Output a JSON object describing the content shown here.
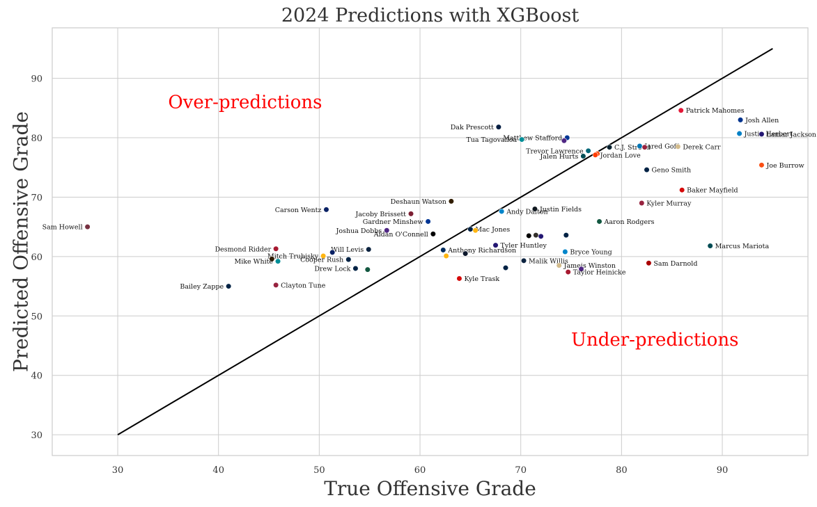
{
  "chart_data": {
    "type": "scatter",
    "title": "2024 Predictions with XGBoost",
    "xlabel": "True Offensive Grade",
    "ylabel": "Predicted Offensive Grade",
    "xlim": [
      23.5,
      98.5
    ],
    "ylim": [
      26.5,
      98.5
    ],
    "xticks": [
      30,
      40,
      50,
      60,
      70,
      80,
      90
    ],
    "yticks": [
      30,
      40,
      50,
      60,
      70,
      80,
      90
    ],
    "grid": true,
    "reference_line": {
      "x": [
        30,
        95
      ],
      "y": [
        30,
        95
      ],
      "color": "#000000"
    },
    "annotations": [
      {
        "text": "Over-predictions",
        "x": 35,
        "y": 85,
        "color": "#ff0000"
      },
      {
        "text": "Under-predictions",
        "x": 75,
        "y": 45,
        "color": "#ff0000"
      }
    ],
    "points": [
      {
        "name": "Patrick Mahomes",
        "x": 85.9,
        "y": 84.6,
        "color": "#e31837",
        "side": "right"
      },
      {
        "name": "Josh Allen",
        "x": 91.8,
        "y": 83.0,
        "color": "#00338d",
        "side": "right"
      },
      {
        "name": "Justin Herbert",
        "x": 91.7,
        "y": 80.7,
        "color": "#0080c6",
        "side": "right"
      },
      {
        "name": "Lamar Jackson",
        "x": 93.9,
        "y": 80.6,
        "color": "#241773",
        "side": "right"
      },
      {
        "name": "Joe Burrow",
        "x": 93.9,
        "y": 75.4,
        "color": "#fb4f14",
        "side": "right"
      },
      {
        "name": "Dak Prescott",
        "x": 67.8,
        "y": 81.8,
        "color": "#041e42",
        "side": "left"
      },
      {
        "name": "Matthew Stafford",
        "x": 74.6,
        "y": 80.0,
        "color": "#003594",
        "side": "left"
      },
      {
        "name": "Tua Tagovailoa",
        "x": 70.1,
        "y": 79.7,
        "color": "#008e97",
        "side": "left"
      },
      {
        "name": "",
        "x": 74.3,
        "y": 79.5,
        "color": "#4f2683",
        "side": "right"
      },
      {
        "name": "C.J. Stroud",
        "x": 78.8,
        "y": 78.4,
        "color": "#03202f",
        "side": "right"
      },
      {
        "name": "Jared Goff",
        "x": 81.8,
        "y": 78.6,
        "color": "#0076b6",
        "side": "right"
      },
      {
        "name": "",
        "x": 82.3,
        "y": 78.4,
        "color": "#97233f",
        "side": "right"
      },
      {
        "name": "Derek Carr",
        "x": 85.6,
        "y": 78.5,
        "color": "#d3bc8d",
        "side": "right"
      },
      {
        "name": "Trevor Lawrence",
        "x": 76.7,
        "y": 77.8,
        "color": "#006778",
        "side": "left"
      },
      {
        "name": "Jalen Hurts",
        "x": 76.2,
        "y": 76.9,
        "color": "#004c54",
        "side": "left"
      },
      {
        "name": "",
        "x": 77.6,
        "y": 77.3,
        "color": "#fb4f14",
        "side": "right"
      },
      {
        "name": "Jordan Love",
        "x": 77.4,
        "y": 77.1,
        "color": "#ff3c00",
        "side": "right"
      },
      {
        "name": "Geno Smith",
        "x": 82.5,
        "y": 74.6,
        "color": "#002244",
        "side": "right"
      },
      {
        "name": "Baker Mayfield",
        "x": 86.0,
        "y": 71.2,
        "color": "#d50a0a",
        "side": "right"
      },
      {
        "name": "Kyler Murray",
        "x": 82.0,
        "y": 69.0,
        "color": "#97233f",
        "side": "right"
      },
      {
        "name": "Deshaun Watson",
        "x": 63.1,
        "y": 69.3,
        "color": "#311d00",
        "side": "left"
      },
      {
        "name": "Carson Wentz",
        "x": 50.7,
        "y": 67.9,
        "color": "#0b2265",
        "side": "left"
      },
      {
        "name": "Andy Dalton",
        "x": 68.1,
        "y": 67.6,
        "color": "#0085ca",
        "side": "right"
      },
      {
        "name": "Justin Fields",
        "x": 71.4,
        "y": 68.0,
        "color": "#101820",
        "side": "right"
      },
      {
        "name": "Jacoby Brissett",
        "x": 59.1,
        "y": 67.2,
        "color": "#7c1f33",
        "side": "left"
      },
      {
        "name": "Gardner Minshew",
        "x": 60.8,
        "y": 65.9,
        "color": "#003594",
        "side": "left"
      },
      {
        "name": "Aaron Rodgers",
        "x": 77.8,
        "y": 65.9,
        "color": "#125740",
        "side": "right"
      },
      {
        "name": "Sam Howell",
        "x": 27.0,
        "y": 65.0,
        "color": "#773141",
        "side": "left"
      },
      {
        "name": "Joshua Dobbs",
        "x": 56.7,
        "y": 64.4,
        "color": "#4f2683",
        "side": "left"
      },
      {
        "name": "Mac Jones",
        "x": 65.0,
        "y": 64.6,
        "color": "#002244",
        "side": "right"
      },
      {
        "name": "",
        "x": 65.5,
        "y": 64.4,
        "color": "#ffb612",
        "side": "right"
      },
      {
        "name": "Aidan O'Connell",
        "x": 61.3,
        "y": 63.8,
        "color": "#000000",
        "side": "left"
      },
      {
        "name": "",
        "x": 70.8,
        "y": 63.5,
        "color": "#000000",
        "side": "right"
      },
      {
        "name": "",
        "x": 71.5,
        "y": 63.6,
        "color": "#322f2b",
        "side": "right"
      },
      {
        "name": "",
        "x": 72.0,
        "y": 63.4,
        "color": "#241773",
        "side": "right"
      },
      {
        "name": "",
        "x": 74.5,
        "y": 63.6,
        "color": "#002244",
        "side": "right"
      },
      {
        "name": "Tyler Huntley",
        "x": 67.5,
        "y": 61.9,
        "color": "#241773",
        "side": "right"
      },
      {
        "name": "Marcus Mariota",
        "x": 88.8,
        "y": 61.8,
        "color": "#004c54",
        "side": "right"
      },
      {
        "name": "Desmond Ridder",
        "x": 45.7,
        "y": 61.3,
        "color": "#a71930",
        "side": "left"
      },
      {
        "name": "Will Levis",
        "x": 54.9,
        "y": 61.2,
        "color": "#0c2340",
        "side": "left"
      },
      {
        "name": "",
        "x": 51.3,
        "y": 60.7,
        "color": "#0b2265",
        "side": "right"
      },
      {
        "name": "Anthony Richardson",
        "x": 62.3,
        "y": 61.1,
        "color": "#002c5f",
        "side": "right"
      },
      {
        "name": "",
        "x": 64.5,
        "y": 60.5,
        "color": "#0b162a",
        "side": "right"
      },
      {
        "name": "Bryce Young",
        "x": 74.4,
        "y": 60.8,
        "color": "#0085ca",
        "side": "right"
      },
      {
        "name": "Mitch Trubisky",
        "x": 50.4,
        "y": 60.1,
        "color": "#ffb612",
        "side": "left"
      },
      {
        "name": "",
        "x": 62.6,
        "y": 60.1,
        "color": "#ffb612",
        "side": "right"
      },
      {
        "name": "Cooper Rush",
        "x": 52.9,
        "y": 59.5,
        "color": "#002244",
        "side": "left"
      },
      {
        "name": "",
        "x": 45.3,
        "y": 59.6,
        "color": "#311d00",
        "side": "right"
      },
      {
        "name": "Mike White",
        "x": 45.9,
        "y": 59.2,
        "color": "#008e97",
        "side": "left"
      },
      {
        "name": "Malik Willis",
        "x": 70.3,
        "y": 59.3,
        "color": "#0c2340",
        "side": "right"
      },
      {
        "name": "Sam Darnold",
        "x": 82.7,
        "y": 58.9,
        "color": "#aa0000",
        "side": "right"
      },
      {
        "name": "Jameis Winston",
        "x": 73.8,
        "y": 58.5,
        "color": "#d3bc8d",
        "side": "right"
      },
      {
        "name": "Drew Lock",
        "x": 53.6,
        "y": 58.0,
        "color": "#002244",
        "side": "left"
      },
      {
        "name": "",
        "x": 54.8,
        "y": 57.8,
        "color": "#125740",
        "side": "right"
      },
      {
        "name": "",
        "x": 68.5,
        "y": 58.1,
        "color": "#002244",
        "side": "right"
      },
      {
        "name": "",
        "x": 76.0,
        "y": 57.9,
        "color": "#4f2683",
        "side": "right"
      },
      {
        "name": "Taylor Heinicke",
        "x": 74.7,
        "y": 57.4,
        "color": "#a71930",
        "side": "right"
      },
      {
        "name": "Kyle Trask",
        "x": 63.9,
        "y": 56.3,
        "color": "#d50a0a",
        "side": "right"
      },
      {
        "name": "Bailey Zappe",
        "x": 41.0,
        "y": 55.0,
        "color": "#002244",
        "side": "left"
      },
      {
        "name": "Clayton Tune",
        "x": 45.7,
        "y": 55.2,
        "color": "#97233f",
        "side": "right"
      }
    ]
  }
}
